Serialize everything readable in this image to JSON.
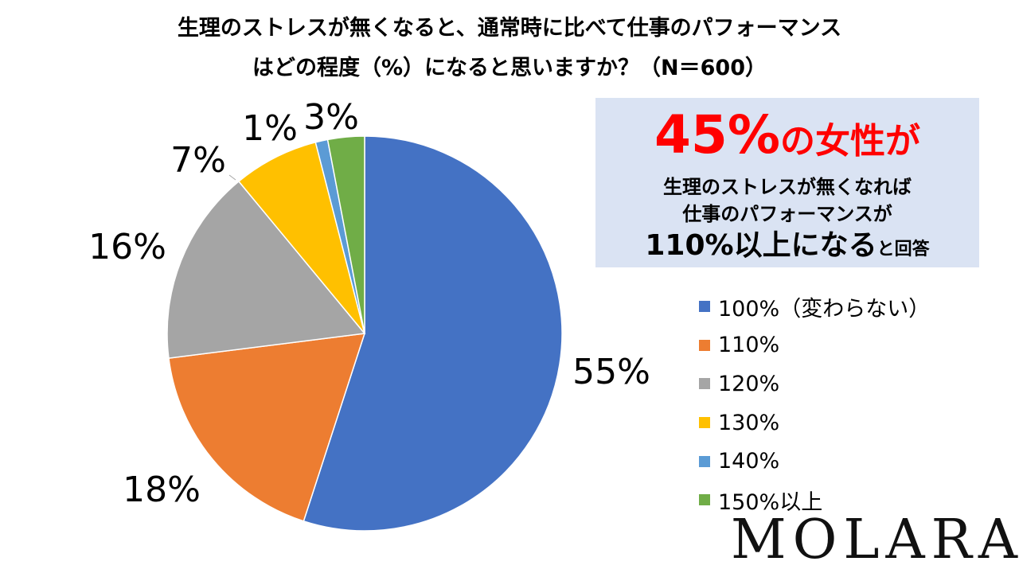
{
  "title_line1": "生理のストレスが無くなると、通常時に比べて仕事のパフォーマンス",
  "title_line2": "はどの程度（%）になると思いますか？（N＝600）",
  "chart_data": {
    "type": "pie",
    "title": "生理のストレスが無くなると、通常時に比べて仕事のパフォーマンスはどの程度（%）になると思いますか？（N＝600）",
    "categories": [
      "100%（変わらない）",
      "110%",
      "120%",
      "130%",
      "140%",
      "150%以上"
    ],
    "values": [
      55,
      18,
      16,
      7,
      1,
      3
    ],
    "value_labels": [
      "55%",
      "18%",
      "16%",
      "7%",
      "1%",
      "3%"
    ],
    "colors": [
      "#4472c4",
      "#ed7d31",
      "#a5a5a5",
      "#ffc000",
      "#5b9bd5",
      "#70ad47"
    ],
    "legend_position": "right",
    "start_angle_deg": 0,
    "direction": "clockwise"
  },
  "callout": {
    "highlight_pct": "45%",
    "highlight_word": "の女性が",
    "line1": "生理のストレスが無くなれば",
    "line2": "仕事のパフォーマンスが",
    "line3_emphasis": "110%以上になる",
    "line3_tail": "と回答",
    "highlight_color": "#ff0000",
    "background_color": "#dae3f3"
  },
  "logo": "MOLARA"
}
